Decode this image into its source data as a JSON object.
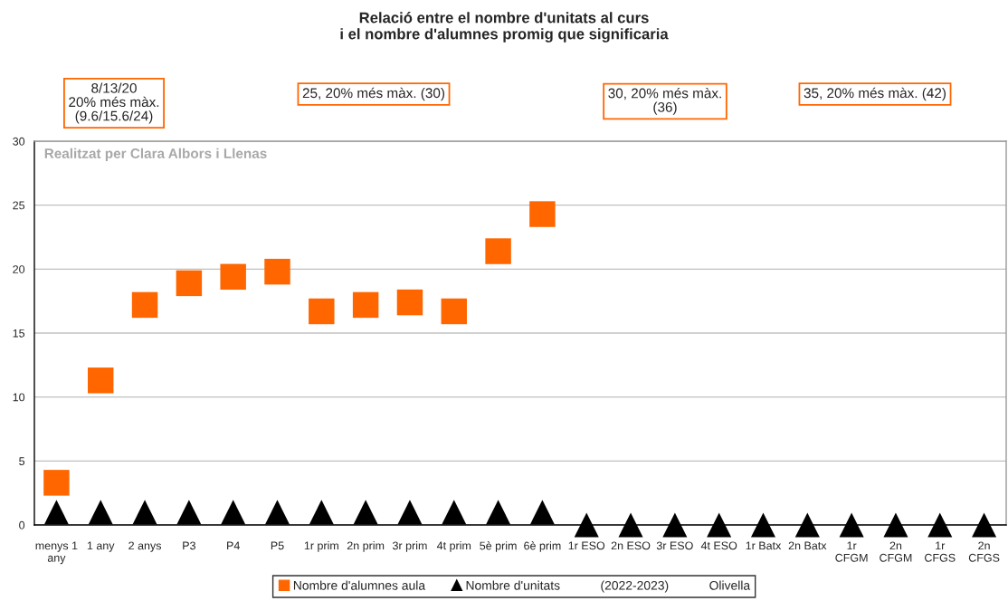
{
  "chart_data": {
    "type": "scatter",
    "title": "Relació entre el nombre d'unitats al curs\ni el nombre d'alumnes promig que significaria",
    "categories": [
      "menys 1\nany",
      "1 any",
      "2 anys",
      "P3",
      "P4",
      "P5",
      "1r prim",
      "2n prim",
      "3r prim",
      "4t prim",
      "5è prim",
      "6è prim",
      "1r ESO",
      "2n ESO",
      "3r ESO",
      "4t ESO",
      "1r Batx",
      "2n Batx",
      "1r\nCFGM",
      "2n\nCFGM",
      "1r\nCFGS",
      "2n\nCFGS"
    ],
    "series": [
      {
        "name": "Nombre d'alumnes aula",
        "color": "#ff6600",
        "marker": "square",
        "values": [
          3.3,
          11.3,
          17.2,
          18.9,
          19.4,
          19.8,
          16.7,
          17.2,
          17.4,
          16.7,
          21.4,
          24.3,
          null,
          null,
          null,
          null,
          null,
          null,
          null,
          null,
          null,
          null
        ]
      },
      {
        "name": "Nombre d'unitats",
        "color": "#000000",
        "marker": "triangle",
        "values": [
          1,
          1,
          1,
          1,
          1,
          1,
          1,
          1,
          1,
          1,
          1,
          1,
          0,
          0,
          0,
          0,
          0,
          0,
          0,
          0,
          0,
          0
        ]
      }
    ],
    "ylim": [
      0,
      30
    ],
    "yticks": [
      0,
      5,
      10,
      15,
      20,
      25,
      30
    ],
    "grid": "y",
    "legend": "bottom",
    "annotations": [
      "8/13/20\n20% més màx.\n(9.6/15.6/24)",
      "25, 20% més màx. (30)",
      "30, 20% més màx.\n(36)",
      "35, 20% més màx. (42)",
      "Realitzat per Clara Albors i Llenas",
      "(2022-2023)",
      "Olivella"
    ]
  }
}
